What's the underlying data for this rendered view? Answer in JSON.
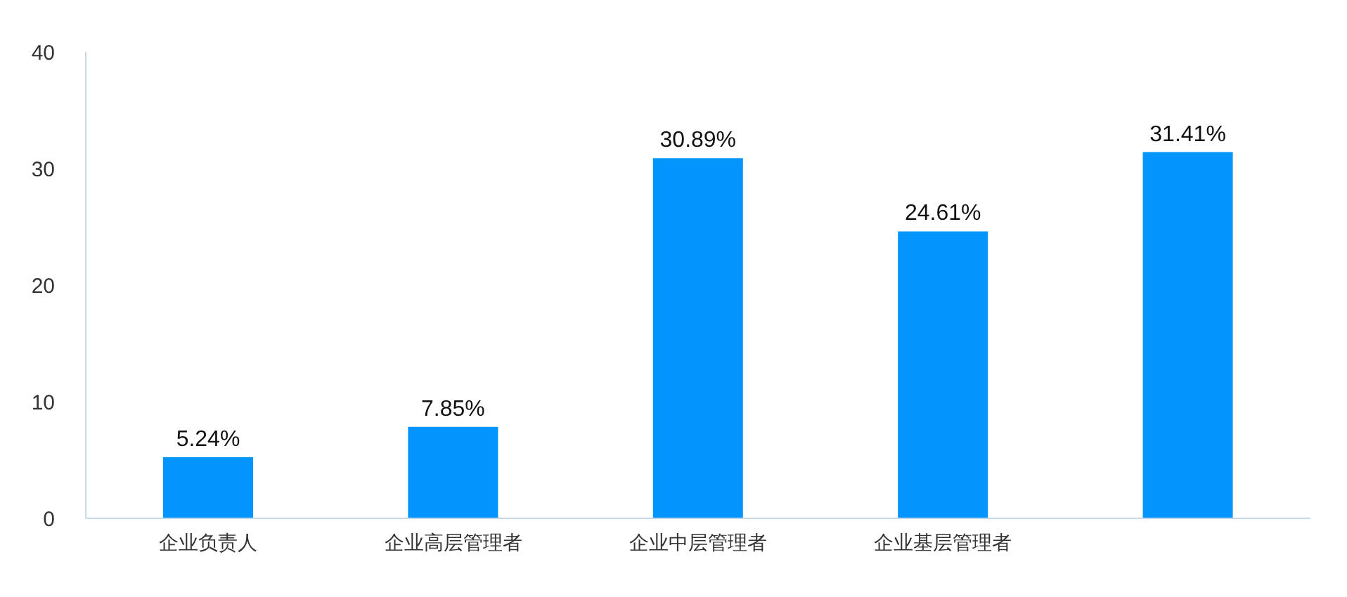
{
  "chart_data": {
    "type": "bar",
    "categories": [
      "企业负责人",
      "企业高层管理者",
      "企业中层管理者",
      "企业基层管理者",
      null
    ],
    "values": [
      5.24,
      7.85,
      30.89,
      24.61,
      31.41
    ],
    "color": "#0395fb",
    "value_labels": [
      "5.24%",
      "7.85%",
      "30.89%",
      "24.61%",
      "31.41%"
    ],
    "ylim": [
      0,
      40
    ],
    "yticks": [
      0,
      10,
      20,
      30,
      40
    ],
    "grid": false
  }
}
